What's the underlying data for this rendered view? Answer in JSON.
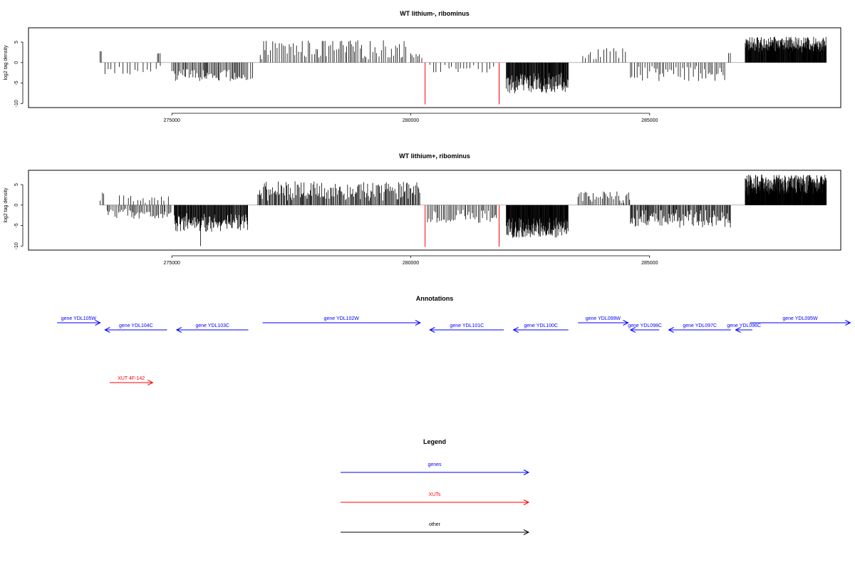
{
  "chart_data": [
    {
      "type": "bar",
      "title": "WT lithium-, ribominus",
      "ylabel": "log2 tag density",
      "xlim": [
        272000,
        289000
      ],
      "ylim": [
        -11,
        8.5
      ],
      "x_ticks": [
        275000,
        280000,
        285000
      ],
      "x_tick_labels": [
        "275000",
        "280000",
        "285000"
      ],
      "y_ticks": [
        5,
        0,
        -5,
        -10
      ],
      "y_tick_labels": [
        "5",
        "0",
        "-5",
        "-10"
      ],
      "baseline_extent": [
        273500,
        288700
      ],
      "highlight_color": "#ff0000",
      "bar_color": "#000000",
      "highlights": [
        {
          "x": 280300,
          "y": -10.2
        },
        {
          "x": 281850,
          "y": -10.2
        }
      ],
      "segments": [
        {
          "start": 273500,
          "end": 273530,
          "sign": 1,
          "lo": 2.6,
          "hi": 2.8,
          "step": 30
        },
        {
          "start": 273600,
          "end": 274300,
          "sign": -1,
          "lo": 0.8,
          "hi": 3.2,
          "step": 80
        },
        {
          "start": 274400,
          "end": 274800,
          "sign": -1,
          "lo": 0.5,
          "hi": 2.5,
          "step": 90
        },
        {
          "start": 274700,
          "end": 274760,
          "sign": 1,
          "lo": 2,
          "hi": 2.4,
          "step": 30
        },
        {
          "start": 275000,
          "end": 276600,
          "sign": -1,
          "lo": 1.5,
          "hi": 4.5,
          "step": 25
        },
        {
          "start": 276650,
          "end": 276700,
          "sign": -1,
          "lo": 3.8,
          "hi": 4,
          "step": 30
        },
        {
          "start": 276850,
          "end": 279900,
          "sign": 1,
          "lo": 0.8,
          "hi": 5.5,
          "step": 40
        },
        {
          "start": 280000,
          "end": 280250,
          "sign": 1,
          "lo": 1,
          "hi": 3,
          "step": 40
        },
        {
          "start": 280400,
          "end": 281800,
          "sign": -1,
          "lo": 0.3,
          "hi": 2.5,
          "step": 70
        },
        {
          "start": 282000,
          "end": 283300,
          "sign": -1,
          "lo": 2.5,
          "hi": 7.5,
          "step": 10
        },
        {
          "start": 283600,
          "end": 284500,
          "sign": 1,
          "lo": 0.5,
          "hi": 3.5,
          "step": 60
        },
        {
          "start": 284600,
          "end": 286600,
          "sign": -1,
          "lo": 0.8,
          "hi": 4.5,
          "step": 40
        },
        {
          "start": 286650,
          "end": 286700,
          "sign": 1,
          "lo": 2.2,
          "hi": 2.4,
          "step": 30
        },
        {
          "start": 287000,
          "end": 288700,
          "sign": 1,
          "lo": 2.5,
          "hi": 6.3,
          "step": 8
        }
      ]
    },
    {
      "type": "bar",
      "title": "WT lithium+, ribominus",
      "ylabel": "log2 tag density",
      "xlim": [
        272000,
        289000
      ],
      "ylim": [
        -11,
        8.5
      ],
      "x_ticks": [
        275000,
        280000,
        285000
      ],
      "x_tick_labels": [
        "275000",
        "280000",
        "285000"
      ],
      "y_ticks": [
        5,
        0,
        -5,
        -10
      ],
      "y_tick_labels": [
        "5",
        "0",
        "-5",
        "-10"
      ],
      "baseline_extent": [
        273500,
        288700
      ],
      "highlight_color": "#ff0000",
      "bar_color": "#000000",
      "highlights": [
        {
          "x": 280300,
          "y": -10.2
        },
        {
          "x": 281850,
          "y": -10.2
        }
      ],
      "segments": [
        {
          "start": 273500,
          "end": 273600,
          "sign": 1,
          "lo": 1,
          "hi": 3.5,
          "step": 40
        },
        {
          "start": 273650,
          "end": 275000,
          "sign": -1,
          "lo": 0.8,
          "hi": 3.5,
          "step": 30
        },
        {
          "start": 273900,
          "end": 275000,
          "sign": 1,
          "lo": 0.5,
          "hi": 2.5,
          "step": 70
        },
        {
          "start": 275050,
          "end": 276600,
          "sign": -1,
          "lo": 2,
          "hi": 6.5,
          "step": 12
        },
        {
          "start": 275600,
          "end": 275620,
          "sign": -1,
          "lo": 10,
          "hi": 10.2,
          "step": 30
        },
        {
          "start": 276800,
          "end": 280200,
          "sign": 1,
          "lo": 1,
          "hi": 5.8,
          "step": 20
        },
        {
          "start": 280350,
          "end": 281800,
          "sign": -1,
          "lo": 0.5,
          "hi": 4.5,
          "step": 30
        },
        {
          "start": 282000,
          "end": 283300,
          "sign": -1,
          "lo": 3,
          "hi": 8,
          "step": 8
        },
        {
          "start": 283500,
          "end": 284600,
          "sign": 1,
          "lo": 0.5,
          "hi": 3.5,
          "step": 30
        },
        {
          "start": 284600,
          "end": 286700,
          "sign": -1,
          "lo": 1,
          "hi": 5.5,
          "step": 18
        },
        {
          "start": 287000,
          "end": 288700,
          "sign": 1,
          "lo": 2.5,
          "hi": 7.5,
          "step": 6
        }
      ]
    }
  ],
  "annotations": {
    "title": "Annotations",
    "genes": [
      {
        "label": "gene YDL105W",
        "start": 272600,
        "end": 273500,
        "strand": "+",
        "row": 0
      },
      {
        "label": "gene YDL104C",
        "start": 273600,
        "end": 274900,
        "strand": "-",
        "row": 1
      },
      {
        "label": "gene YDL103C",
        "start": 275100,
        "end": 276600,
        "strand": "-",
        "row": 1
      },
      {
        "label": "gene YDL102W",
        "start": 276900,
        "end": 280200,
        "strand": "+",
        "row": 0
      },
      {
        "label": "gene YDL101C",
        "start": 280400,
        "end": 281950,
        "strand": "-",
        "row": 1
      },
      {
        "label": "gene YDL100C",
        "start": 282150,
        "end": 283300,
        "strand": "-",
        "row": 1
      },
      {
        "label": "gene YDL099W",
        "start": 283500,
        "end": 284550,
        "strand": "+",
        "row": 0
      },
      {
        "label": "gene YDL098C",
        "start": 284600,
        "end": 285200,
        "strand": "-",
        "row": 1
      },
      {
        "label": "gene YDL097C",
        "start": 285400,
        "end": 286700,
        "strand": "-",
        "row": 1
      },
      {
        "label": "gene YDL096C",
        "start": 286800,
        "end": 287150,
        "strand": "-",
        "row": 1
      },
      {
        "label": "gene YDL095W",
        "start": 287100,
        "end": 289200,
        "strand": "+",
        "row": 0
      }
    ],
    "xuts": [
      {
        "label": "XUT 4F-142",
        "start": 273700,
        "end": 274600,
        "strand": "+"
      }
    ]
  },
  "legend": {
    "title": "Legend",
    "items": [
      {
        "label": "genes",
        "color": "#0000ff"
      },
      {
        "label": "XUTs",
        "color": "#ff0000"
      },
      {
        "label": "other",
        "color": "#000000"
      }
    ]
  },
  "colors": {
    "genes": "#0000ff",
    "xuts": "#ff0000",
    "other": "#000000",
    "bars": "#000000"
  }
}
